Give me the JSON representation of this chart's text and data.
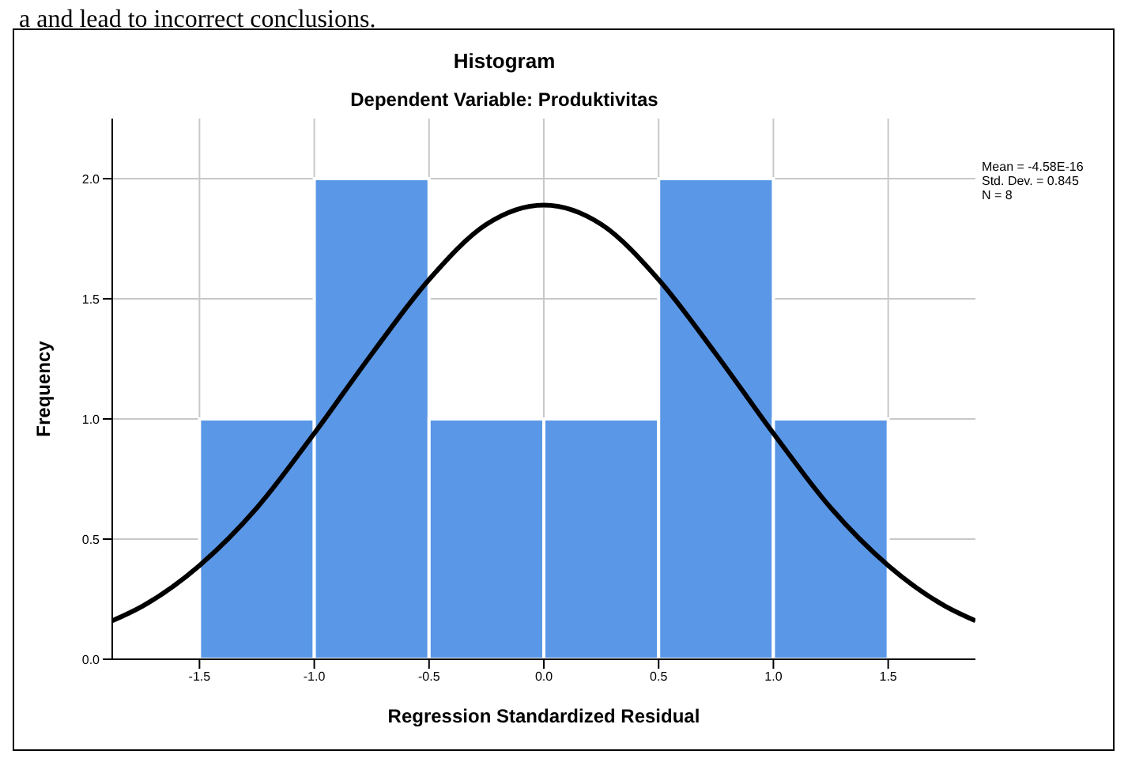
{
  "chart_data": {
    "type": "histogram",
    "title": "Histogram",
    "subtitle": "Dependent Variable: Produktivitas",
    "xlabel": "Regression Standardized Residual",
    "ylabel": "Frequency",
    "bins": [
      -1.5,
      -1.0,
      -0.5,
      0.0,
      0.5,
      1.0,
      1.5
    ],
    "values": [
      1,
      2,
      1,
      1,
      2,
      1
    ],
    "color": "#5a97e6",
    "series": [
      {
        "type": "line",
        "color": "#000000",
        "x": [
          -1.88,
          -1.75,
          -1.5,
          -1.25,
          -1.0,
          -0.75,
          -0.5,
          -0.25,
          0,
          0.25,
          0.5,
          0.75,
          1.0,
          1.25,
          1.5,
          1.75,
          1.88
        ],
        "values": [
          0.16,
          0.22,
          0.39,
          0.63,
          0.94,
          1.27,
          1.58,
          1.81,
          1.89,
          1.81,
          1.58,
          1.27,
          0.94,
          0.63,
          0.39,
          0.22,
          0.16
        ]
      }
    ],
    "xlim": [
      -1.88,
      1.88
    ],
    "xticks": [
      {
        "value": -1.5,
        "label": "-1.5"
      },
      {
        "value": -1.0,
        "label": "-1.0"
      },
      {
        "value": -0.5,
        "label": "-0.5"
      },
      {
        "value": 0,
        "label": "0.0"
      },
      {
        "value": 0.5,
        "label": "0.5"
      },
      {
        "value": 1.0,
        "label": "1.0"
      },
      {
        "value": 1.5,
        "label": "1.5"
      }
    ],
    "ylim": [
      0,
      2.25
    ],
    "yticks": [
      {
        "value": 0,
        "label": "0.0"
      },
      {
        "value": 0.5,
        "label": "0.5"
      },
      {
        "value": 1.0,
        "label": "1.0"
      },
      {
        "value": 1.5,
        "label": "1.5"
      },
      {
        "value": 2.0,
        "label": "2.0"
      }
    ],
    "grid": true,
    "annotations": [
      "a and lead to incorrect conclusions.",
      "Mean = -4.58E-16",
      "Std. Dev. = 0.845",
      "N = 8"
    ]
  }
}
